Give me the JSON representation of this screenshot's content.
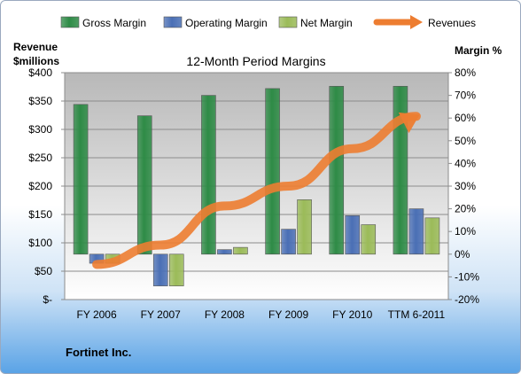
{
  "company": "Fortinet Inc.",
  "colors": {
    "gross": "#2e8b46",
    "operating": "#4a6fb5",
    "net": "#9bbb59",
    "revenues": "#ed7d31"
  },
  "chart_data": {
    "type": "bar",
    "title": "12-Month Period Margins",
    "left_axis_title": [
      "Revenue",
      "$millions"
    ],
    "right_axis_title": "Margin %",
    "categories": [
      "FY 2006",
      "FY 2007",
      "FY 2008",
      "FY 2009",
      "FY 2010",
      "TTM 6-2011"
    ],
    "left_ticks": [
      "$-",
      "$50",
      "$100",
      "$150",
      "$200",
      "$250",
      "$300",
      "$350",
      "$400"
    ],
    "right_ticks": [
      "-20%",
      "-10%",
      "0%",
      "10%",
      "20%",
      "30%",
      "40%",
      "50%",
      "60%",
      "70%",
      "80%"
    ],
    "ylim_left": [
      0,
      400
    ],
    "ylim_right": [
      -20,
      80
    ],
    "grid": true,
    "legend_position": "top",
    "series": [
      {
        "name": "Gross Margin",
        "key": "gross",
        "axis": "right",
        "kind": "bar",
        "values": [
          66,
          61,
          70,
          73,
          74,
          74
        ]
      },
      {
        "name": "Operating Margin",
        "key": "operating",
        "axis": "right",
        "kind": "bar",
        "values": [
          -4,
          -14,
          2,
          11,
          17,
          20
        ]
      },
      {
        "name": "Net Margin",
        "key": "net",
        "axis": "right",
        "kind": "bar",
        "values": [
          -4,
          -14,
          3,
          24,
          13,
          16
        ]
      },
      {
        "name": "Revenues",
        "key": "revenues",
        "axis": "left",
        "kind": "line",
        "values": [
          62,
          96,
          165,
          200,
          266,
          323
        ]
      }
    ]
  }
}
